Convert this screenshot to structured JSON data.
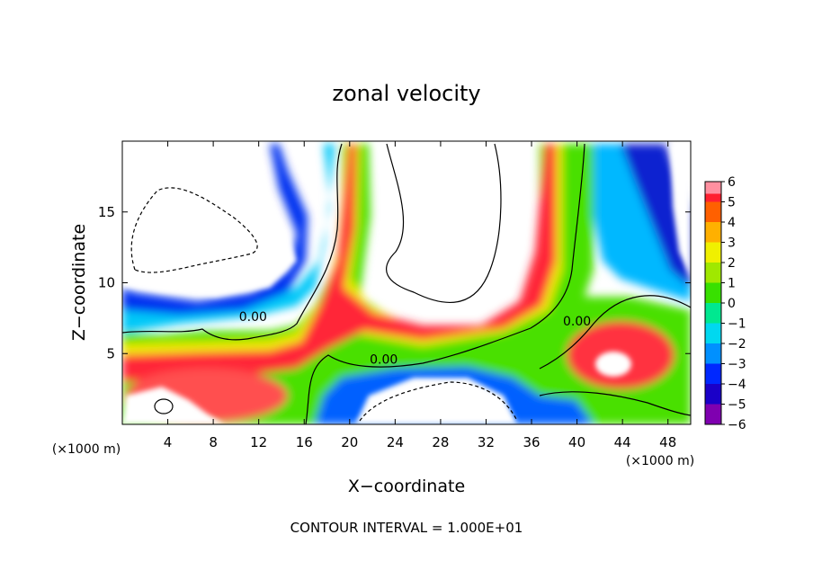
{
  "chart_data": {
    "type": "heatmap",
    "title": "zonal velocity",
    "xlabel": "X−coordinate",
    "ylabel": "Z−coordinate",
    "x_unit": "(×1000 m)",
    "y_unit": "(×1000 m)",
    "xlim": [
      0,
      50
    ],
    "ylim": [
      0,
      20
    ],
    "x_ticks": [
      {
        "value": 4,
        "label": "4"
      },
      {
        "value": 8,
        "label": "8"
      },
      {
        "value": 12,
        "label": "12"
      },
      {
        "value": 16,
        "label": "16"
      },
      {
        "value": 20,
        "label": "20"
      },
      {
        "value": 24,
        "label": "24"
      },
      {
        "value": 28,
        "label": "28"
      },
      {
        "value": 32,
        "label": "32"
      },
      {
        "value": 36,
        "label": "36"
      },
      {
        "value": 40,
        "label": "40"
      },
      {
        "value": 44,
        "label": "44"
      },
      {
        "value": 48,
        "label": "48"
      }
    ],
    "y_ticks": [
      {
        "value": 5,
        "label": "5"
      },
      {
        "value": 10,
        "label": "10"
      },
      {
        "value": 15,
        "label": "15"
      }
    ],
    "colorbar": {
      "levels": [
        {
          "value": -6,
          "label": "−6",
          "color": "#7f00b0"
        },
        {
          "value": -5,
          "label": "−5",
          "color": "#1a00c8"
        },
        {
          "value": -4,
          "label": "−4",
          "color": "#0028ff"
        },
        {
          "value": -3,
          "label": "−3",
          "color": "#0090ff"
        },
        {
          "value": -2,
          "label": "−2",
          "color": "#00d8f0"
        },
        {
          "value": -1,
          "label": "−1",
          "color": "#00e890"
        },
        {
          "value": 0,
          "label": "0",
          "color": "#38e000"
        },
        {
          "value": 1,
          "label": "1",
          "color": "#a0e800"
        },
        {
          "value": 2,
          "label": "2",
          "color": "#f0f000"
        },
        {
          "value": 3,
          "label": "3",
          "color": "#ffb000"
        },
        {
          "value": 4,
          "label": "4",
          "color": "#ff6000"
        },
        {
          "value": 5,
          "label": "5",
          "color": "#ff2030"
        },
        {
          "value": 6,
          "label": "6",
          "color": "#ff90a0"
        }
      ]
    },
    "contour_labels": [
      {
        "text": "0.00",
        "x": 11.5,
        "z": 7.3
      },
      {
        "text": "0.00",
        "x": 23.0,
        "z": 4.3
      },
      {
        "text": "0.00",
        "x": 40.0,
        "z": 7.0
      }
    ],
    "contour_interval_text": "CONTOUR INTERVAL = 1.000E+01",
    "grid": false,
    "legend_position": "right"
  }
}
